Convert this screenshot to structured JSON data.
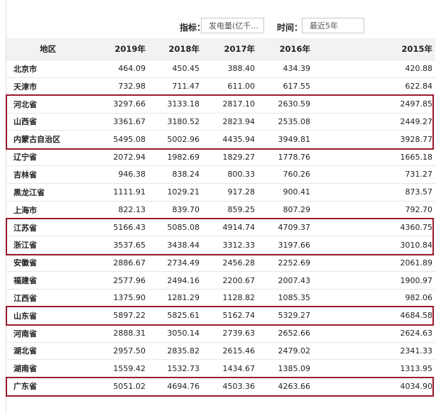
{
  "filters": {
    "indicator_label": "指标：",
    "indicator_value": "发电量(亿千...",
    "time_label": "时间：",
    "time_value": "最近5年"
  },
  "table": {
    "headers": [
      "地区",
      "2019年",
      "2018年",
      "2017年",
      "2016年",
      "2015年"
    ],
    "rows": [
      [
        "北京市",
        "464.09",
        "450.45",
        "388.40",
        "434.39",
        "420.88"
      ],
      [
        "天津市",
        "732.98",
        "711.47",
        "611.00",
        "617.55",
        "622.84"
      ],
      [
        "河北省",
        "3297.66",
        "3133.18",
        "2817.10",
        "2630.59",
        "2497.85"
      ],
      [
        "山西省",
        "3361.67",
        "3180.52",
        "2823.94",
        "2535.08",
        "2449.27"
      ],
      [
        "内蒙古自治区",
        "5495.08",
        "5002.96",
        "4435.94",
        "3949.81",
        "3928.77"
      ],
      [
        "辽宁省",
        "2072.94",
        "1982.69",
        "1829.27",
        "1778.76",
        "1665.18"
      ],
      [
        "吉林省",
        "946.38",
        "838.24",
        "800.33",
        "760.26",
        "731.27"
      ],
      [
        "黑龙江省",
        "1111.91",
        "1029.21",
        "917.28",
        "900.41",
        "873.57"
      ],
      [
        "上海市",
        "822.13",
        "839.70",
        "859.25",
        "807.29",
        "792.70"
      ],
      [
        "江苏省",
        "5166.43",
        "5085.08",
        "4914.74",
        "4709.37",
        "4360.75"
      ],
      [
        "浙江省",
        "3537.65",
        "3438.44",
        "3312.33",
        "3197.66",
        "3010.84"
      ],
      [
        "安徽省",
        "2886.67",
        "2734.49",
        "2456.28",
        "2252.69",
        "2061.89"
      ],
      [
        "福建省",
        "2577.96",
        "2494.16",
        "2200.67",
        "2007.43",
        "1900.97"
      ],
      [
        "江西省",
        "1375.90",
        "1281.29",
        "1128.82",
        "1085.35",
        "982.06"
      ],
      [
        "山东省",
        "5897.22",
        "5825.61",
        "5162.74",
        "5329.27",
        "4684.58"
      ],
      [
        "河南省",
        "2888.31",
        "3050.14",
        "2739.63",
        "2652.66",
        "2624.63"
      ],
      [
        "湖北省",
        "2957.50",
        "2835.82",
        "2615.46",
        "2479.02",
        "2341.33"
      ],
      [
        "湖南省",
        "1559.42",
        "1532.73",
        "1434.67",
        "1385.09",
        "1313.95"
      ],
      [
        "广东省",
        "5051.02",
        "4694.76",
        "4503.36",
        "4263.66",
        "4034.90"
      ]
    ]
  },
  "highlighted_row_groups": [
    [
      2,
      4
    ],
    [
      9,
      10
    ],
    [
      14,
      14
    ],
    [
      18,
      18
    ]
  ],
  "highlight_color": "#9b1c2a"
}
